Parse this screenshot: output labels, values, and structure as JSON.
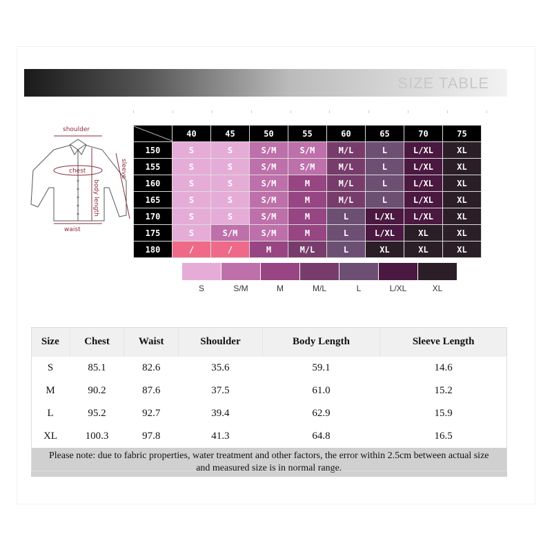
{
  "header": {
    "title": "SIZE TABLE"
  },
  "diagram": {
    "labels": {
      "shoulder": "shoulder",
      "chest": "chest",
      "sleeve": "sleeve",
      "body_length": "body length",
      "waist": "waist"
    }
  },
  "size_grid": {
    "columns": [
      "40",
      "45",
      "50",
      "55",
      "60",
      "65",
      "70",
      "75"
    ],
    "rows": [
      {
        "label": "150",
        "cells": [
          "S",
          "S",
          "S/M",
          "S/M",
          "M/L",
          "L",
          "L/XL",
          "XL"
        ]
      },
      {
        "label": "155",
        "cells": [
          "S",
          "S",
          "S/M",
          "S/M",
          "M/L",
          "L",
          "L/XL",
          "XL"
        ]
      },
      {
        "label": "160",
        "cells": [
          "S",
          "S",
          "S/M",
          "M",
          "M/L",
          "L",
          "L/XL",
          "XL"
        ]
      },
      {
        "label": "165",
        "cells": [
          "S",
          "S",
          "S/M",
          "M",
          "M/L",
          "L",
          "L/XL",
          "XL"
        ]
      },
      {
        "label": "170",
        "cells": [
          "S",
          "S",
          "S/M",
          "M",
          "L",
          "L/XL",
          "L/XL",
          "XL"
        ]
      },
      {
        "label": "175",
        "cells": [
          "S",
          "S/M",
          "S/M",
          "M",
          "L",
          "L/XL",
          "XL",
          "XL"
        ]
      },
      {
        "label": "180",
        "cells": [
          "/",
          "/",
          "M",
          "M/L",
          "L",
          "XL",
          "XL",
          "XL"
        ]
      }
    ]
  },
  "colors": {
    "S": "#e6acd8",
    "S/M": "#be70aa",
    "M": "#974583",
    "M/L": "#773c6c",
    "L": "#6d4f74",
    "L/XL": "#4a1840",
    "XL": "#2b1e27",
    "/": "#ef6a88"
  },
  "legend": [
    "S",
    "S/M",
    "M",
    "M/L",
    "L",
    "L/XL",
    "XL"
  ],
  "measure_table": {
    "headers": [
      "Size",
      "Chest",
      "Waist",
      "Shoulder",
      "Body Length",
      "Sleeve Length"
    ],
    "rows": [
      [
        "S",
        "85.1",
        "82.6",
        "35.6",
        "59.1",
        "14.6"
      ],
      [
        "M",
        "90.2",
        "87.6",
        "37.5",
        "61.0",
        "15.2"
      ],
      [
        "L",
        "95.2",
        "92.7",
        "39.4",
        "62.9",
        "15.9"
      ],
      [
        "XL",
        "100.3",
        "97.8",
        "41.3",
        "64.8",
        "16.5"
      ]
    ],
    "note_line1": "Please note: due to fabric properties, water treatment and other factors, the error within 2.5cm between actual size",
    "note_line2": "and measured size is in normal range."
  }
}
